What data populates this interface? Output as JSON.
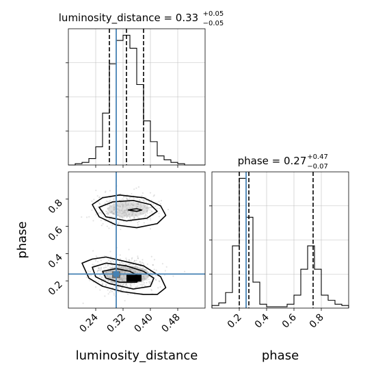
{
  "chart_data": {
    "type": "corner",
    "parameters": [
      {
        "name": "luminosity_distance",
        "title_base": "luminosity_distance = 0.33",
        "title_plus": "+0.05",
        "title_minus": "−0.05",
        "xlabel": "luminosity_distance",
        "range": [
          0.16,
          0.56
        ],
        "ticks": [
          "0.24",
          "0.32",
          "0.40",
          "0.48"
        ],
        "tick_values": [
          0.24,
          0.32,
          0.4,
          0.48
        ],
        "truth": 0.3,
        "quantiles": [
          0.28,
          0.33,
          0.38
        ],
        "hist_bins": [
          0.16,
          0.18,
          0.2,
          0.22,
          0.24,
          0.26,
          0.28,
          0.3,
          0.32,
          0.34,
          0.36,
          0.38,
          0.4,
          0.42,
          0.44,
          0.46,
          0.48,
          0.5,
          0.52,
          0.54,
          0.56
        ],
        "hist_counts": [
          0,
          1,
          2,
          5,
          14,
          40,
          78,
          96,
          100,
          90,
          62,
          34,
          18,
          7,
          4,
          2,
          1,
          0,
          0,
          0
        ]
      },
      {
        "name": "phase",
        "title_base": "phase = 0.27",
        "title_plus": "+0.47",
        "title_minus": "−0.07",
        "xlabel": "phase",
        "ylabel": "phase",
        "range": [
          0.0,
          1.0
        ],
        "ticks": [
          "0.2",
          "0.4",
          "0.6",
          "0.8"
        ],
        "tick_values": [
          0.2,
          0.4,
          0.6,
          0.8
        ],
        "truth": 0.25,
        "quantiles": [
          0.2,
          0.27,
          0.74
        ],
        "hist_bins": [
          0.0,
          0.05,
          0.1,
          0.15,
          0.2,
          0.25,
          0.3,
          0.35,
          0.4,
          0.45,
          0.5,
          0.55,
          0.6,
          0.65,
          0.7,
          0.75,
          0.8,
          0.85,
          0.9,
          0.95,
          1.0
        ],
        "hist_counts": [
          2,
          4,
          12,
          48,
          100,
          70,
          20,
          3,
          1,
          1,
          1,
          3,
          10,
          30,
          48,
          30,
          10,
          6,
          3,
          2
        ]
      }
    ],
    "density_blobs": [
      {
        "center": [
          0.325,
          0.245
        ],
        "spread": [
          0.045,
          0.06
        ],
        "weight": 1.0
      },
      {
        "center": [
          0.33,
          0.73
        ],
        "spread": [
          0.045,
          0.055
        ],
        "weight": 0.6
      }
    ],
    "contours": [
      {
        "x": [
          0.2,
          0.23,
          0.27,
          0.33,
          0.38,
          0.43,
          0.445,
          0.42,
          0.38,
          0.32,
          0.26,
          0.22,
          0.2
        ],
        "y": [
          0.33,
          0.36,
          0.375,
          0.34,
          0.31,
          0.23,
          0.15,
          0.1,
          0.1,
          0.12,
          0.16,
          0.22,
          0.33
        ]
      },
      {
        "x": [
          0.23,
          0.27,
          0.33,
          0.38,
          0.41,
          0.4,
          0.35,
          0.28,
          0.24,
          0.23
        ],
        "y": [
          0.3,
          0.33,
          0.31,
          0.27,
          0.22,
          0.16,
          0.14,
          0.18,
          0.23,
          0.3
        ]
      },
      {
        "x": [
          0.26,
          0.3,
          0.34,
          0.37,
          0.36,
          0.31,
          0.27,
          0.26
        ],
        "y": [
          0.27,
          0.29,
          0.27,
          0.23,
          0.19,
          0.19,
          0.22,
          0.27
        ]
      },
      {
        "x": [
          0.23,
          0.26,
          0.31,
          0.38,
          0.43,
          0.445,
          0.42,
          0.36,
          0.3,
          0.25,
          0.23
        ],
        "y": [
          0.76,
          0.81,
          0.83,
          0.81,
          0.75,
          0.68,
          0.62,
          0.59,
          0.61,
          0.67,
          0.76
        ]
      },
      {
        "x": [
          0.25,
          0.29,
          0.35,
          0.4,
          0.42,
          0.39,
          0.33,
          0.27,
          0.25
        ],
        "y": [
          0.74,
          0.78,
          0.79,
          0.76,
          0.71,
          0.66,
          0.64,
          0.67,
          0.74
        ]
      },
      {
        "x": [
          0.335,
          0.36,
          0.375,
          0.36,
          0.335
        ],
        "y": [
          0.72,
          0.73,
          0.72,
          0.71,
          0.72
        ]
      }
    ],
    "colors": {
      "truth": "#4682b4",
      "hist": "#000000",
      "grid": "#bfbfbf",
      "density": "#7f7f7f"
    },
    "grid": true
  }
}
